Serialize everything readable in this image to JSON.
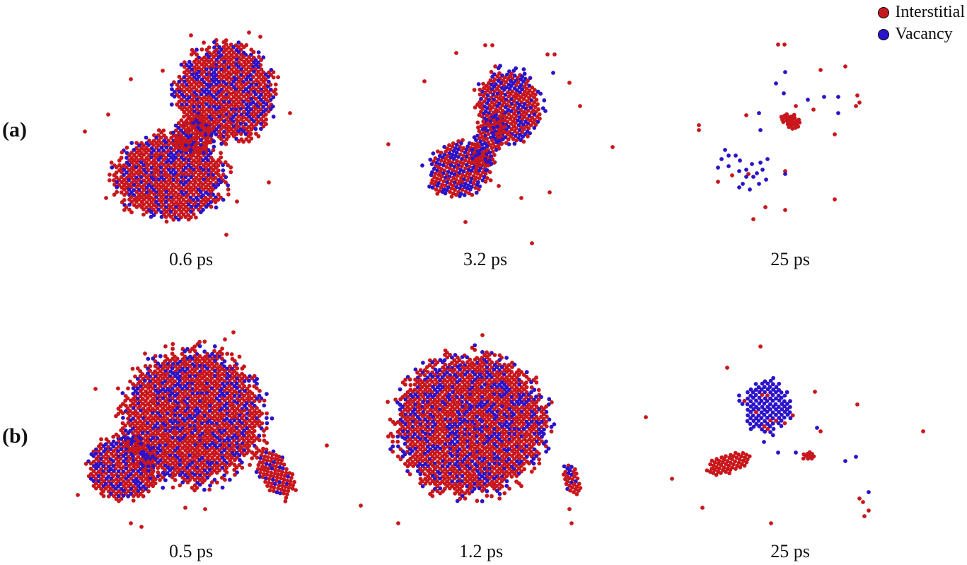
{
  "legend": {
    "interstitial_label": "Interstitial",
    "vacancy_label": "Vacancy"
  },
  "colors": {
    "interstitial": "#c8171c",
    "vacancy": "#2b13c9"
  },
  "rows": [
    {
      "label": "(a)",
      "panels": [
        {
          "time": "0.6 ps"
        },
        {
          "time": "3.2 ps"
        },
        {
          "time": "25 ps"
        }
      ]
    },
    {
      "label": "(b)",
      "panels": [
        {
          "time": "0.5 ps"
        },
        {
          "time": "1.2 ps"
        },
        {
          "time": "25 ps"
        }
      ]
    }
  ]
}
